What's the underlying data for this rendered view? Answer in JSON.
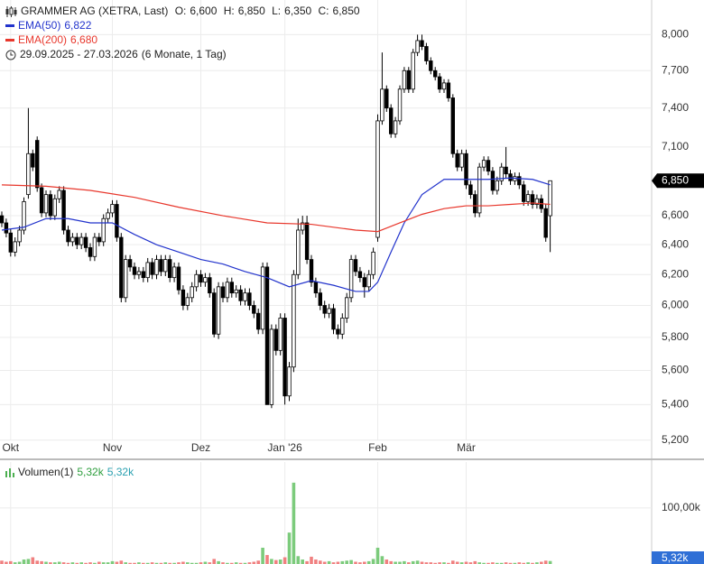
{
  "chart_data": {
    "type": "candlestick",
    "title": "GRAMMER AG (XETRA, Last)",
    "ohlc": [
      {
        "key": "O:",
        "value": 6.6,
        "label": "6,600"
      },
      {
        "key": "H:",
        "value": 6.85,
        "label": "6,850"
      },
      {
        "key": "L:",
        "value": 6.35,
        "label": "6,350"
      },
      {
        "key": "C:",
        "value": 6.85,
        "label": "6,850"
      }
    ],
    "date_range": "29.09.2025 - 27.03.2026",
    "period": "(6 Monate, 1 Tag)",
    "log_scale": true,
    "grid": true,
    "up_color": "#ffffff",
    "down_color": "#000000",
    "ylim": [
      5.1,
      8.3
    ],
    "yticks": [
      {
        "value": 8.0,
        "label": "8,000"
      },
      {
        "value": 7.7,
        "label": "7,700"
      },
      {
        "value": 7.4,
        "label": "7,400"
      },
      {
        "value": 7.1,
        "label": "7,100"
      },
      {
        "value": 6.6,
        "label": "6,600"
      },
      {
        "value": 6.4,
        "label": "6,400"
      },
      {
        "value": 6.2,
        "label": "6,200"
      },
      {
        "value": 6.0,
        "label": "6,000"
      },
      {
        "value": 5.8,
        "label": "5,800"
      },
      {
        "value": 5.6,
        "label": "5,600"
      },
      {
        "value": 5.4,
        "label": "5,400"
      },
      {
        "value": 5.2,
        "label": "5,200"
      }
    ],
    "categories": [
      null,
      null,
      "Okt",
      null,
      null,
      null,
      null,
      null,
      null,
      null,
      null,
      null,
      null,
      null,
      null,
      null,
      null,
      null,
      null,
      null,
      null,
      null,
      null,
      null,
      null,
      "Nov",
      null,
      null,
      null,
      null,
      null,
      null,
      null,
      null,
      null,
      null,
      null,
      null,
      null,
      null,
      null,
      null,
      null,
      null,
      null,
      "Dez",
      null,
      null,
      null,
      null,
      null,
      null,
      null,
      null,
      null,
      null,
      null,
      null,
      null,
      null,
      null,
      null,
      null,
      null,
      "Jan '26",
      null,
      null,
      null,
      null,
      null,
      null,
      null,
      null,
      null,
      null,
      null,
      null,
      null,
      null,
      null,
      null,
      null,
      null,
      null,
      null,
      "Feb",
      null,
      null,
      null,
      null,
      null,
      null,
      null,
      null,
      null,
      null,
      null,
      null,
      null,
      null,
      null,
      null,
      null,
      null,
      null,
      "Mär",
      null,
      null,
      null,
      null,
      null,
      null,
      null,
      null,
      null,
      null,
      null,
      null,
      null,
      null,
      null,
      null,
      null,
      null,
      null
    ],
    "open": [
      6.6,
      6.55,
      6.48,
      6.35,
      6.42,
      6.5,
      6.75,
      7.05,
      7.15,
      6.8,
      6.62,
      6.75,
      6.6,
      6.72,
      6.78,
      6.5,
      6.42,
      6.45,
      6.4,
      6.45,
      6.38,
      6.32,
      6.45,
      6.42,
      6.58,
      6.62,
      6.68,
      6.45,
      6.05,
      6.3,
      6.25,
      6.2,
      6.22,
      6.18,
      6.28,
      6.2,
      6.3,
      6.22,
      6.3,
      6.18,
      6.25,
      6.1,
      6.0,
      6.05,
      6.12,
      6.2,
      6.15,
      6.18,
      6.08,
      5.82,
      6.12,
      6.05,
      6.15,
      6.08,
      6.1,
      6.03,
      6.08,
      6.0,
      5.95,
      5.85,
      6.25,
      5.4,
      5.85,
      5.72,
      5.92,
      5.45,
      5.62,
      6.2,
      6.5,
      6.55,
      6.3,
      6.15,
      6.08,
      6.0,
      5.95,
      5.98,
      5.85,
      5.82,
      5.92,
      6.05,
      6.3,
      6.22,
      6.18,
      6.12,
      6.2,
      6.45,
      7.3,
      7.55,
      7.4,
      7.2,
      7.3,
      7.55,
      7.7,
      7.55,
      7.85,
      7.95,
      7.9,
      7.78,
      7.7,
      7.65,
      7.55,
      7.6,
      7.48,
      7.05,
      6.95,
      7.05,
      6.82,
      6.75,
      6.62,
      6.95,
      7.0,
      6.92,
      6.78,
      6.85,
      6.95,
      6.9,
      6.85,
      6.88,
      6.82,
      6.7,
      6.75,
      6.68,
      6.72,
      6.65,
      6.6
    ],
    "high": [
      6.63,
      6.58,
      6.51,
      6.45,
      6.53,
      6.73,
      7.4,
      7.08,
      7.18,
      6.83,
      6.78,
      6.78,
      6.75,
      6.81,
      6.81,
      6.53,
      6.48,
      6.48,
      6.48,
      6.48,
      6.41,
      6.48,
      6.48,
      6.61,
      6.65,
      6.71,
      6.71,
      6.48,
      6.33,
      6.33,
      6.28,
      6.25,
      6.25,
      6.31,
      6.31,
      6.33,
      6.33,
      6.33,
      6.33,
      6.28,
      6.28,
      6.13,
      6.08,
      6.15,
      6.23,
      6.23,
      6.21,
      6.21,
      6.11,
      6.15,
      6.15,
      6.18,
      6.18,
      6.13,
      6.13,
      6.11,
      6.11,
      6.03,
      5.98,
      6.28,
      6.28,
      5.88,
      5.88,
      5.95,
      5.95,
      5.65,
      6.23,
      6.58,
      6.6,
      6.6,
      6.33,
      6.18,
      6.11,
      6.03,
      6.01,
      6.01,
      5.88,
      5.95,
      6.08,
      6.33,
      6.33,
      6.25,
      6.21,
      6.23,
      6.38,
      7.35,
      7.85,
      7.58,
      7.43,
      7.33,
      7.58,
      7.73,
      7.73,
      7.88,
      8.0,
      8.0,
      7.93,
      7.81,
      7.73,
      7.68,
      7.63,
      7.63,
      7.51,
      7.08,
      7.08,
      7.08,
      6.85,
      6.78,
      6.98,
      7.03,
      7.03,
      6.95,
      6.88,
      6.98,
      7.1,
      6.93,
      6.91,
      6.91,
      6.85,
      6.78,
      6.78,
      6.75,
      6.75,
      6.68,
      6.85
    ],
    "low": [
      6.52,
      6.45,
      6.32,
      6.32,
      6.39,
      6.47,
      6.72,
      6.92,
      6.77,
      6.59,
      6.59,
      6.57,
      6.57,
      6.69,
      6.47,
      6.39,
      6.39,
      6.37,
      6.37,
      6.35,
      6.29,
      6.29,
      6.39,
      6.39,
      6.55,
      6.59,
      6.42,
      6.02,
      6.02,
      6.22,
      6.17,
      6.17,
      6.15,
      6.15,
      6.17,
      6.17,
      6.19,
      6.19,
      6.15,
      6.15,
      6.07,
      5.97,
      5.97,
      6.02,
      6.09,
      6.12,
      6.12,
      6.05,
      5.8,
      5.79,
      6.02,
      6.02,
      6.05,
      6.05,
      6.0,
      6.0,
      5.97,
      5.92,
      5.82,
      5.82,
      5.4,
      5.38,
      5.69,
      5.69,
      5.4,
      5.42,
      5.59,
      6.17,
      6.47,
      6.27,
      6.12,
      6.05,
      5.97,
      5.92,
      5.92,
      5.82,
      5.79,
      5.79,
      5.89,
      6.02,
      6.19,
      6.15,
      6.05,
      6.09,
      6.17,
      6.42,
      7.27,
      7.37,
      7.17,
      7.17,
      7.27,
      7.52,
      7.52,
      7.52,
      7.82,
      7.87,
      7.75,
      7.67,
      7.62,
      7.52,
      7.52,
      7.45,
      7.02,
      6.92,
      6.92,
      6.79,
      6.72,
      6.59,
      6.59,
      6.92,
      6.89,
      6.75,
      6.75,
      6.82,
      6.87,
      6.82,
      6.82,
      6.79,
      6.67,
      6.67,
      6.65,
      6.65,
      6.62,
      6.42,
      6.35
    ],
    "close": [
      6.55,
      6.48,
      6.35,
      6.42,
      6.5,
      6.7,
      7.05,
      6.95,
      6.8,
      6.62,
      6.75,
      6.6,
      6.72,
      6.78,
      6.5,
      6.42,
      6.45,
      6.4,
      6.45,
      6.38,
      6.32,
      6.45,
      6.42,
      6.58,
      6.62,
      6.68,
      6.45,
      6.05,
      6.3,
      6.25,
      6.2,
      6.22,
      6.18,
      6.28,
      6.2,
      6.3,
      6.22,
      6.3,
      6.18,
      6.25,
      6.1,
      6.0,
      6.05,
      6.12,
      6.2,
      6.15,
      6.18,
      6.08,
      5.82,
      6.12,
      6.05,
      6.15,
      6.08,
      6.1,
      6.03,
      6.08,
      6.0,
      5.95,
      5.85,
      6.25,
      5.4,
      5.85,
      5.72,
      5.92,
      5.45,
      5.62,
      6.2,
      6.5,
      6.55,
      6.3,
      6.15,
      6.08,
      6.0,
      5.95,
      5.98,
      5.85,
      5.82,
      5.92,
      6.05,
      6.3,
      6.22,
      6.18,
      6.12,
      6.2,
      6.35,
      7.3,
      7.55,
      7.4,
      7.2,
      7.3,
      7.55,
      7.7,
      7.55,
      7.85,
      7.95,
      7.9,
      7.78,
      7.7,
      7.65,
      7.55,
      7.6,
      7.48,
      7.05,
      6.95,
      7.05,
      6.82,
      6.75,
      6.62,
      6.95,
      7.0,
      6.92,
      6.78,
      6.85,
      6.95,
      6.9,
      6.85,
      6.88,
      6.82,
      6.7,
      6.75,
      6.68,
      6.72,
      6.65,
      6.45,
      6.85
    ],
    "last_price": {
      "value": 6.85,
      "label": "6,850"
    },
    "series": [
      {
        "name": "EMA(50)",
        "color": "#2233cc",
        "legend_value": {
          "value": 6.822,
          "label": "6,822"
        },
        "x": [
          0,
          5,
          10,
          15,
          20,
          25,
          30,
          35,
          40,
          45,
          50,
          55,
          60,
          65,
          70,
          75,
          80,
          83,
          85,
          88,
          91,
          95,
          100,
          105,
          110,
          115,
          120,
          124
        ],
        "values": [
          6.5,
          6.52,
          6.58,
          6.58,
          6.55,
          6.55,
          6.47,
          6.4,
          6.35,
          6.3,
          6.27,
          6.22,
          6.18,
          6.12,
          6.16,
          6.13,
          6.09,
          6.09,
          6.15,
          6.35,
          6.55,
          6.75,
          6.86,
          6.86,
          6.86,
          6.87,
          6.86,
          6.82
        ]
      },
      {
        "name": "EMA(200)",
        "color": "#e8372c",
        "legend_value": {
          "value": 6.68,
          "label": "6,680"
        },
        "x": [
          0,
          10,
          20,
          30,
          40,
          50,
          60,
          70,
          80,
          85,
          90,
          95,
          100,
          105,
          110,
          115,
          120,
          124
        ],
        "values": [
          6.82,
          6.81,
          6.78,
          6.73,
          6.66,
          6.6,
          6.55,
          6.54,
          6.5,
          6.49,
          6.55,
          6.61,
          6.65,
          6.67,
          6.67,
          6.68,
          6.69,
          6.68
        ]
      }
    ],
    "volume": {
      "title": "Volumen(1)",
      "up_color": "#7ccb7c",
      "down_color": "#f08080",
      "ylim": [
        0,
        185000
      ],
      "yticks": [
        {
          "value": 100000,
          "label": "100,00k"
        }
      ],
      "legend_values": [
        {
          "value": 5320,
          "label": "5,32k",
          "color": "#2e9e3e"
        },
        {
          "value": 5320,
          "label": "5,32k",
          "color": "#2aa0b0"
        }
      ],
      "last_label": {
        "value": 5320,
        "label": "5,32k",
        "color": "#2f6fd6"
      },
      "values": [
        6000,
        4000,
        5000,
        3000,
        4000,
        8000,
        9000,
        12000,
        6000,
        5000,
        4000,
        3000,
        3000,
        4000,
        3000,
        2000,
        3000,
        2000,
        3000,
        2000,
        3000,
        2000,
        4000,
        3000,
        3000,
        5000,
        4000,
        6000,
        3000,
        2000,
        2000,
        3000,
        2000,
        2000,
        3000,
        2000,
        2000,
        3000,
        2000,
        2000,
        3000,
        4000,
        3000,
        2000,
        2000,
        3000,
        4000,
        3000,
        9000,
        5000,
        3000,
        2000,
        2000,
        3000,
        2000,
        2000,
        3000,
        4000,
        6000,
        29000,
        16000,
        9000,
        7000,
        8000,
        12000,
        56000,
        145000,
        14000,
        8000,
        5000,
        13000,
        8000,
        6000,
        4000,
        5000,
        3000,
        4000,
        5000,
        6000,
        7000,
        4000,
        3000,
        4000,
        5000,
        9000,
        29000,
        14000,
        8000,
        5000,
        4000,
        4000,
        5000,
        3000,
        5000,
        6000,
        4000,
        3000,
        3000,
        2000,
        3000,
        3000,
        2000,
        6000,
        4000,
        3000,
        4000,
        3000,
        5000,
        3000,
        2000,
        2000,
        3000,
        2000,
        2000,
        3000,
        2000,
        2000,
        3000,
        2000,
        3000,
        2000,
        3000,
        4000,
        6000,
        5320
      ]
    }
  }
}
